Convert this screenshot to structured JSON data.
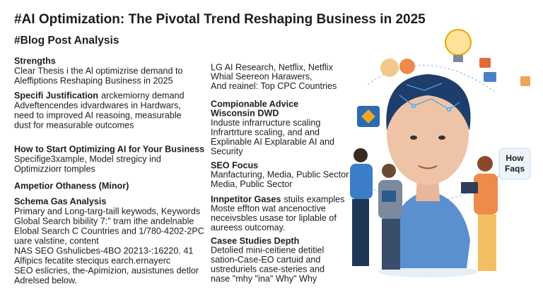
{
  "header": {
    "title": "#AI Optimization: The Pivotal Trend Reshaping Business in 2025",
    "subtitle": "#Blog Post Analysis"
  },
  "columns": [
    {
      "sections": [
        {
          "heading": [
            "Strengths"
          ],
          "lines": [
            "Clear Thesis i the Al optimizrise demand to",
            "Aleffiptions Reshaping Business in 2025"
          ]
        },
        {
          "heading": [
            "Specifi Justification"
          ],
          "heading_tail": "arckemiorny demand",
          "lines": [
            "Adveftencendes idvardwares in Hardwars,",
            "need to improved AI reasoing, measurable",
            "dust for measurable outcomes"
          ]
        },
        {
          "heading": [
            "How to Start Optimizing AI for Your Business"
          ],
          "lines": [
            "Specifige3xample, Model stregicy ind",
            "Optimizziorr tomples"
          ]
        },
        {
          "heading": [
            "Ampetior Othaness (Minor)"
          ],
          "lines": []
        },
        {
          "heading": [
            "Schema Gas Analysis"
          ],
          "lines": [
            "Primary and Long-targ-taill keywods, Keywords",
            "Global Search bibility 7:\" tram ithe andelnable",
            "Elobal Search C Countries and 1/780-4202-2PC",
            "uare valstine, content",
            "NAS SEO Gshulicbes-4BO 20213-:16220. 41",
            "Alfipics fecatite steciqus earch.ernayerc",
            "SEO eslicries, the-Apimizion, ausistunes detlor",
            "Adrelsed below."
          ]
        }
      ]
    },
    {
      "sections": [
        {
          "lines": [
            "LG AI Research, Netflix, Netflix",
            "Whial Seereon Harawers,",
            "And reainel: Top CPC Countries"
          ]
        },
        {
          "heading": [
            "Compionable Advice",
            "Wisconsin DWD"
          ],
          "lines": [
            "Induste infrarructure scaling",
            "Infrartrture scaling, and and",
            "Explinable AI Explarable AI and",
            "Security"
          ]
        },
        {
          "heading": [
            "SEO Focus"
          ],
          "lines": [
            "Manfacturing, Media, Public Sector",
            "Media, Public Sector"
          ]
        },
        {
          "heading": [
            "Innpetitor Gases"
          ],
          "heading_tail": "stuils examples",
          "lines": [
            "Moste effton wat ancenoctive",
            "neceivsbles usase tor liplable of",
            "aureess outcomay."
          ]
        },
        {
          "heading": [
            "Casee Studies Depth"
          ],
          "lines": [
            "Detolied mini-ceitiene detitiel",
            "sation-Case-EO cartuid and",
            "ustreduriels case-steries and",
            "nase \"mhy \"ina\" Why\" Why"
          ]
        }
      ]
    }
  ],
  "illustration": {
    "bubble": [
      "How",
      "Faqs"
    ]
  }
}
